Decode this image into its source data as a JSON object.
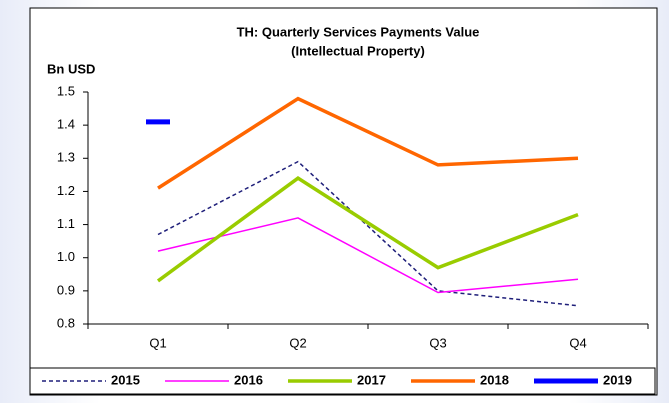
{
  "chart_data": {
    "type": "line",
    "title": "TH: Quarterly Services Payments Value",
    "subtitle": "(Intellectual Property)",
    "y_label": "Bn USD",
    "categories": [
      "Q1",
      "Q2",
      "Q3",
      "Q4"
    ],
    "ylim": [
      0.8,
      1.5
    ],
    "yticks": [
      0.8,
      0.9,
      {
        "value": 1,
        "label": "1.0"
      },
      1.1,
      1.2,
      1.3,
      1.4,
      1.5
    ],
    "legend": "bottom",
    "series": [
      {
        "name": "2015",
        "color": "#1f1f7a",
        "style": "dashed",
        "width": 1.5,
        "values": [
          1.07,
          1.29,
          0.9,
          0.855
        ]
      },
      {
        "name": "2016",
        "color": "#ff00ff",
        "style": "solid",
        "width": 1.5,
        "values": [
          1.02,
          1.12,
          0.895,
          0.935
        ]
      },
      {
        "name": "2017",
        "color": "#99cc00",
        "style": "solid",
        "width": 3.5,
        "values": [
          0.93,
          1.24,
          0.97,
          1.13
        ]
      },
      {
        "name": "2018",
        "color": "#ff6600",
        "style": "solid",
        "width": 3.5,
        "values": [
          1.21,
          1.48,
          1.28,
          1.3
        ]
      },
      {
        "name": "2019",
        "color": "#0000ff",
        "style": "solid",
        "width": 5,
        "values": [
          1.41,
          null,
          null,
          null
        ]
      }
    ]
  }
}
